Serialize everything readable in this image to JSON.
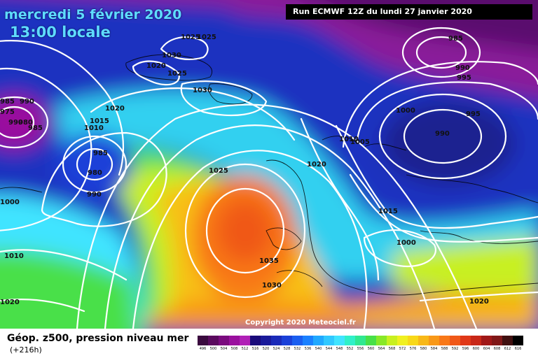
{
  "header": {
    "date": "mercredi 5 février 2020",
    "time": "13:00 locale",
    "run": "Run ECMWF 12Z du lundi 27 janvier 2020"
  },
  "copyright": "Copyright 2020 Meteociel.fr",
  "legend": {
    "title": "Géop. z500, pression niveau mer",
    "subtitle": "(+216h)",
    "scale": [
      {
        "label": "496",
        "color": "#3a0a3e"
      },
      {
        "label": "500",
        "color": "#5a0a5e"
      },
      {
        "label": "504",
        "color": "#7a0a7e"
      },
      {
        "label": "508",
        "color": "#9a109e"
      },
      {
        "label": "512",
        "color": "#b020b6"
      },
      {
        "label": "516",
        "color": "#1a0a7a"
      },
      {
        "label": "520",
        "color": "#1a1a9a"
      },
      {
        "label": "524",
        "color": "#1a2ab8"
      },
      {
        "label": "528",
        "color": "#1a40d8"
      },
      {
        "label": "532",
        "color": "#1a5ef0"
      },
      {
        "label": "536",
        "color": "#1a80ff"
      },
      {
        "label": "540",
        "color": "#20a8ff"
      },
      {
        "label": "544",
        "color": "#30c8ff"
      },
      {
        "label": "548",
        "color": "#40e4ff"
      },
      {
        "label": "552",
        "color": "#30f0c8"
      },
      {
        "label": "556",
        "color": "#30e890"
      },
      {
        "label": "560",
        "color": "#48e048"
      },
      {
        "label": "564",
        "color": "#88e828"
      },
      {
        "label": "568",
        "color": "#c8f020"
      },
      {
        "label": "572",
        "color": "#f0f020"
      },
      {
        "label": "576",
        "color": "#f8d818"
      },
      {
        "label": "580",
        "color": "#f8b818"
      },
      {
        "label": "584",
        "color": "#f89818"
      },
      {
        "label": "588",
        "color": "#f87818"
      },
      {
        "label": "592",
        "color": "#f05818"
      },
      {
        "label": "596",
        "color": "#e03818"
      },
      {
        "label": "600",
        "color": "#c82818"
      },
      {
        "label": "604",
        "color": "#a01818"
      },
      {
        "label": "608",
        "color": "#801818"
      },
      {
        "label": "612",
        "color": "#401010"
      },
      {
        "label": "616",
        "color": "#000000"
      }
    ]
  },
  "isobar_labels": [
    "1025",
    "1025",
    "1030",
    "1020",
    "1025",
    "1030",
    "985",
    "990",
    "995",
    "990",
    "985",
    "980",
    "975",
    "990",
    "985",
    "1015",
    "1010",
    "1020",
    "1000",
    "995",
    "990",
    "985",
    "980",
    "990",
    "1000",
    "1025",
    "1010",
    "1005",
    "1020",
    "1015",
    "1000",
    "1035",
    "1030",
    "1010",
    "1020",
    "1020"
  ]
}
